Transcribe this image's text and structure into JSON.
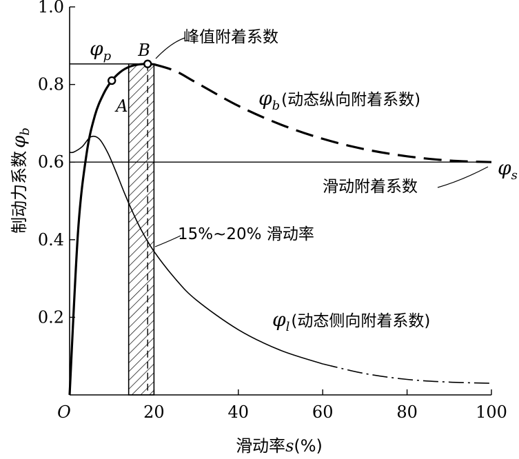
{
  "chart_data": {
    "type": "line",
    "xlabel_prefix": "滑动率",
    "xlabel_var": "s",
    "xlabel_suffix": "(%)",
    "ylabel_text": "制动力系数",
    "ylabel_symbol": "φ",
    "ylabel_sub": "b",
    "xlim": [
      0,
      100
    ],
    "ylim": [
      0,
      1.0
    ],
    "x_ticks": [
      0,
      20,
      40,
      60,
      80,
      100
    ],
    "x_tick_labels": [
      "O",
      "20",
      "40",
      "60",
      "80",
      "100"
    ],
    "y_ticks": [
      0.2,
      0.4,
      0.6,
      0.8,
      1.0
    ],
    "y_tick_labels": [
      "0.2",
      "0.4",
      "0.6",
      "0.8",
      "1.0"
    ],
    "series": [
      {
        "name": "φb(动态纵向附着系数)",
        "style": "solid-then-dashed",
        "x": [
          0,
          2,
          4,
          6,
          8,
          10,
          12,
          14,
          16,
          18,
          20,
          25,
          30,
          40,
          50,
          60,
          70,
          80,
          90,
          100
        ],
        "y": [
          0,
          0.42,
          0.62,
          0.72,
          0.775,
          0.81,
          0.832,
          0.845,
          0.851,
          0.853,
          0.852,
          0.835,
          0.805,
          0.745,
          0.697,
          0.66,
          0.633,
          0.615,
          0.604,
          0.6
        ]
      },
      {
        "name": "φl(动态侧向附着系数)",
        "style": "solid-then-dashdot",
        "x": [
          0,
          1,
          3,
          5,
          7,
          9,
          11,
          13,
          15,
          17,
          20,
          25,
          30,
          40,
          50,
          60,
          70,
          80,
          90,
          100
        ],
        "y": [
          0.625,
          0.626,
          0.64,
          0.665,
          0.66,
          0.625,
          0.575,
          0.52,
          0.47,
          0.425,
          0.37,
          0.3,
          0.245,
          0.168,
          0.115,
          0.08,
          0.055,
          0.04,
          0.033,
          0.03
        ]
      }
    ],
    "reference_lines": [
      {
        "y": 0.853,
        "x_from": 0,
        "x_to": 19
      },
      {
        "y": 0.6,
        "x_from": 0,
        "x_to": 100
      }
    ],
    "shaded_band": {
      "x_from": 14,
      "x_to": 20,
      "pattern": "diagonal hatch"
    },
    "markers": [
      {
        "label": "A",
        "x": 10,
        "y": 0.81
      },
      {
        "label": "B",
        "x": 18.5,
        "y": 0.853
      }
    ],
    "annotations": {
      "peak_label": "峰值附着系数",
      "sliding_label": "滑动附着系数",
      "slip_range_label": "15%~20% 滑动率",
      "phi_b_symbol": "φ",
      "phi_b_sub": "b",
      "phi_b_desc": "(动态纵向附着系数)",
      "phi_l_symbol": "φ",
      "phi_l_sub": "l",
      "phi_l_desc": "(动态侧向附着系数)",
      "phi_p_symbol": "φ",
      "phi_p_sub": "p",
      "phi_s_symbol": "φ",
      "phi_s_sub": "s"
    }
  }
}
